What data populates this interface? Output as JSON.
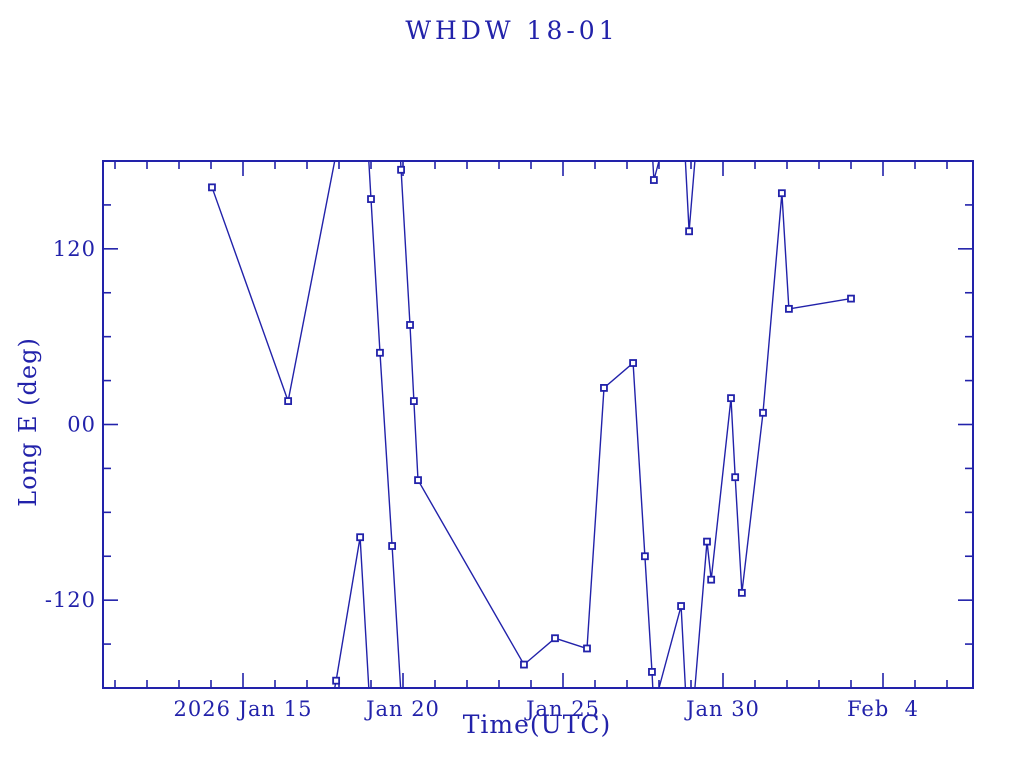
{
  "title": "WHDW 18-01",
  "colors": {
    "accent": "#2222aa",
    "background": "#ffffff"
  },
  "chart_data": {
    "type": "line",
    "title": "WHDW 18-01",
    "xlabel": "Time(UTC)",
    "ylabel": "Long E (deg)",
    "legend": "none",
    "grid": false,
    "x_axis": {
      "epoch_label": "2026 Jan 15",
      "units": "days relative to 2026 Jan 15",
      "range_days": [
        -4.375,
        22.8125
      ],
      "minor_tick_step_days": 1,
      "major_ticks": [
        {
          "day": 0,
          "label": "2026 Jan 15"
        },
        {
          "day": 5,
          "label": "Jan 20"
        },
        {
          "day": 10,
          "label": "Jan 25"
        },
        {
          "day": 15,
          "label": "Jan 30"
        },
        {
          "day": 20,
          "label": "Feb  4"
        }
      ]
    },
    "y_axis": {
      "units": "deg",
      "range_deg": [
        -180,
        180
      ],
      "minor_tick_step_deg": 30,
      "major_ticks": [
        {
          "deg": 120,
          "label": "120"
        },
        {
          "deg": 0,
          "label": "00"
        },
        {
          "deg": -120,
          "label": "-120"
        }
      ]
    },
    "wrap_at_deg": 180,
    "series": [
      {
        "name": "longitude",
        "marker": "open-square",
        "points_day_deg": [
          [
            -0.97,
            162
          ],
          [
            1.41,
            16
          ],
          [
            2.91,
            -175
          ],
          [
            3.66,
            -77
          ],
          [
            4.0,
            154
          ],
          [
            4.28,
            49
          ],
          [
            4.66,
            -83
          ],
          [
            4.94,
            174
          ],
          [
            5.22,
            68
          ],
          [
            5.34,
            16
          ],
          [
            5.47,
            -38
          ],
          [
            8.78,
            -164
          ],
          [
            9.75,
            -146
          ],
          [
            10.75,
            -153
          ],
          [
            11.28,
            25
          ],
          [
            12.19,
            42
          ],
          [
            12.56,
            -90
          ],
          [
            12.78,
            -169
          ],
          [
            12.84,
            167
          ],
          [
            13.69,
            -124
          ],
          [
            13.94,
            132
          ],
          [
            14.5,
            -80
          ],
          [
            14.63,
            -106
          ],
          [
            15.25,
            18
          ],
          [
            15.38,
            -36
          ],
          [
            15.59,
            -115
          ],
          [
            16.25,
            8
          ],
          [
            16.84,
            158
          ],
          [
            17.06,
            79
          ],
          [
            19.0,
            86
          ]
        ]
      }
    ]
  }
}
